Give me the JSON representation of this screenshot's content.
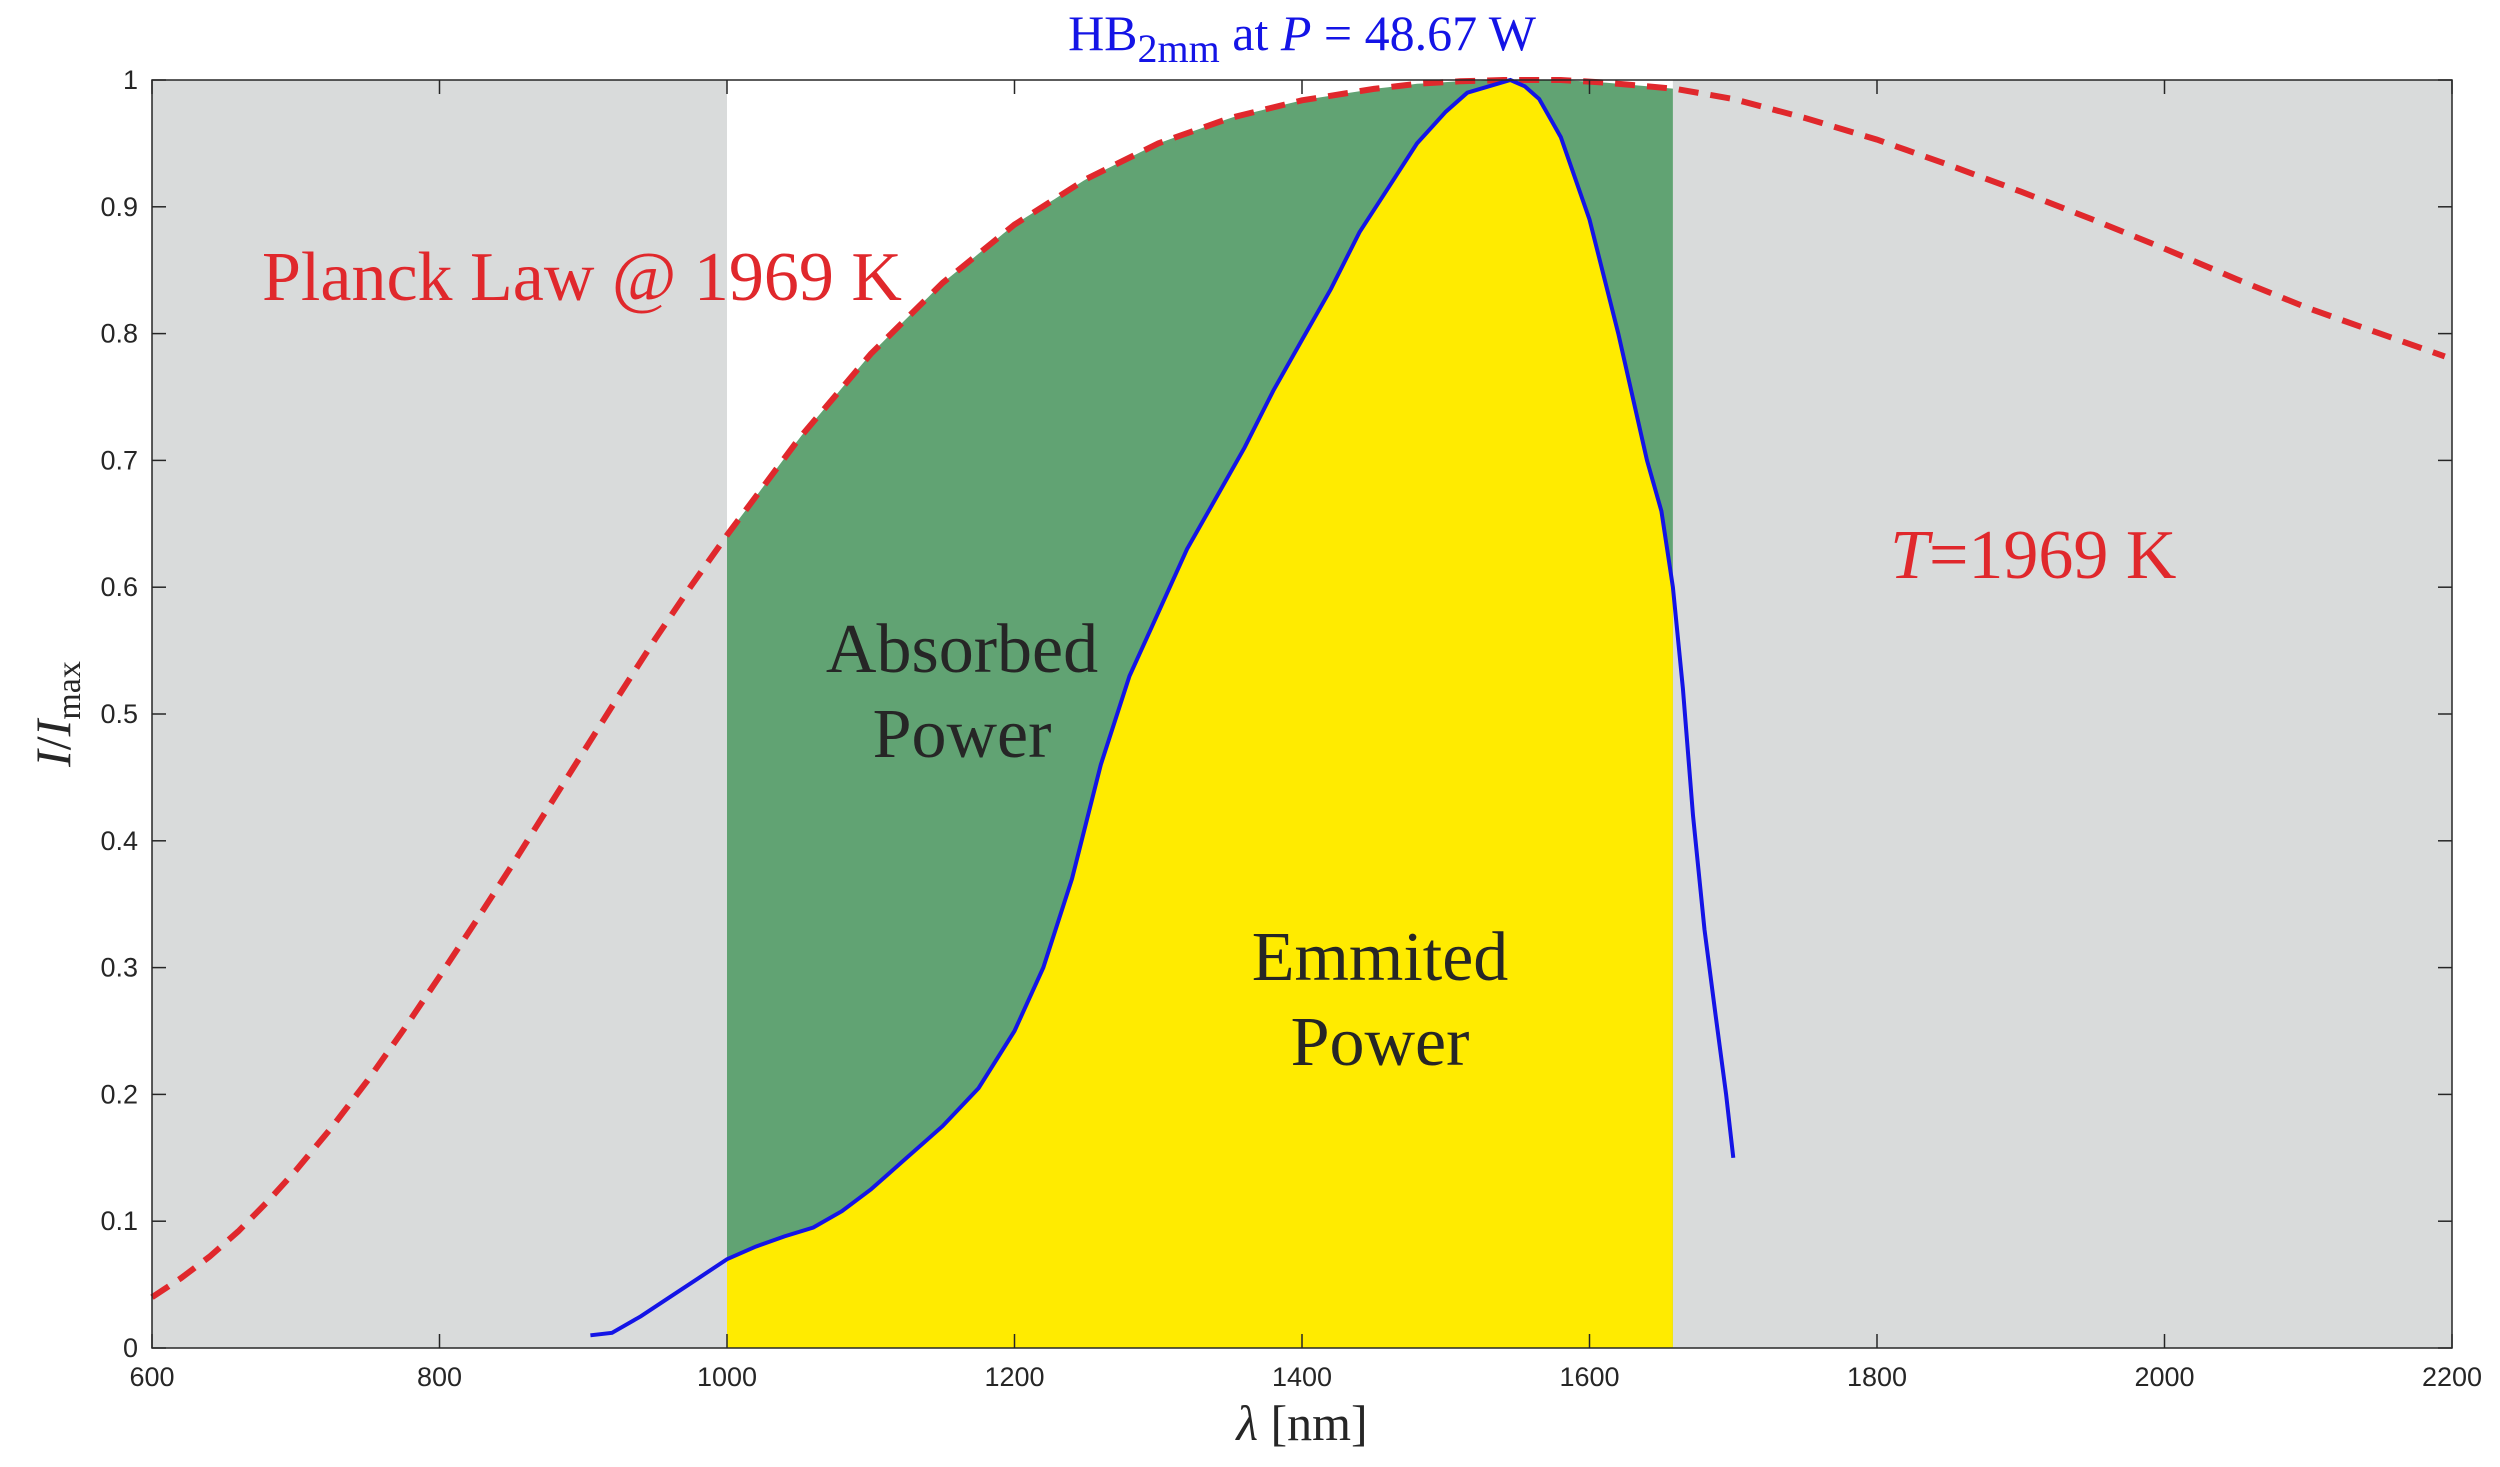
{
  "chart_data": {
    "type": "area",
    "title": {
      "prefix": "HB",
      "subscript": "2mm",
      "middle": " at ",
      "var": "P",
      "suffix": " = 48.67 W"
    },
    "xlabel": {
      "symbol": "λ",
      "unit": " [nm]"
    },
    "ylabel": {
      "var": "I",
      "slash": "/",
      "denom": "I",
      "denom_sub": "max"
    },
    "xlim": [
      600,
      2200
    ],
    "ylim": [
      0,
      1
    ],
    "xticks": [
      "600",
      "800",
      "1000",
      "1200",
      "1400",
      "1600",
      "1800",
      "2000",
      "2200"
    ],
    "yticks": [
      "0",
      "0.1",
      "0.2",
      "0.3",
      "0.4",
      "0.5",
      "0.6",
      "0.7",
      "0.8",
      "0.9",
      "1"
    ],
    "grid": false,
    "window": [
      1000,
      1658
    ],
    "annotations": {
      "planck": "Planck Law @ 1969 K",
      "temp_var": "T",
      "temp_rest": "=1969 K",
      "absorbed_1": "Absorbed",
      "absorbed_2": "Power",
      "emitted_1": "Emmited",
      "emitted_2": "Power"
    },
    "colors": {
      "planck": "#e0282c",
      "measured": "#1414e6",
      "absorbed": "#61a373",
      "emitted": "#ffeb00",
      "outside": "#d9dbdb"
    },
    "series": [
      {
        "style": "dashed",
        "x": [
          600,
          620,
          640,
          660,
          680,
          700,
          725,
          750,
          775,
          800,
          825,
          850,
          875,
          900,
          925,
          950,
          975,
          1000,
          1050,
          1100,
          1150,
          1200,
          1250,
          1300,
          1350,
          1400,
          1450,
          1480,
          1510,
          1540,
          1560,
          1580,
          1610,
          1640,
          1660,
          1700,
          1750,
          1800,
          1850,
          1900,
          1950,
          2000,
          2050,
          2100,
          2150,
          2195
        ],
        "y": [
          0.04,
          0.055,
          0.072,
          0.092,
          0.115,
          0.14,
          0.174,
          0.211,
          0.251,
          0.293,
          0.336,
          0.38,
          0.425,
          0.47,
          0.515,
          0.559,
          0.601,
          0.641,
          0.717,
          0.784,
          0.84,
          0.886,
          0.922,
          0.95,
          0.97,
          0.984,
          0.993,
          0.997,
          0.999,
          1.0,
          1.0,
          1.0,
          0.998,
          0.995,
          0.993,
          0.985,
          0.97,
          0.953,
          0.933,
          0.912,
          0.89,
          0.867,
          0.843,
          0.82,
          0.8,
          0.782
        ]
      },
      {
        "style": "solid",
        "x": [
          905,
          920,
          940,
          960,
          980,
          1000,
          1020,
          1040,
          1060,
          1080,
          1100,
          1125,
          1150,
          1175,
          1200,
          1220,
          1240,
          1260,
          1280,
          1300,
          1320,
          1340,
          1360,
          1380,
          1400,
          1420,
          1440,
          1460,
          1480,
          1500,
          1515,
          1530,
          1545,
          1555,
          1565,
          1580,
          1600,
          1620,
          1640,
          1650,
          1658,
          1665,
          1672,
          1680,
          1688,
          1695,
          1700
        ],
        "y": [
          0.01,
          0.012,
          0.025,
          0.04,
          0.055,
          0.07,
          0.08,
          0.088,
          0.095,
          0.108,
          0.125,
          0.15,
          0.175,
          0.205,
          0.25,
          0.3,
          0.37,
          0.46,
          0.53,
          0.58,
          0.63,
          0.67,
          0.71,
          0.755,
          0.795,
          0.835,
          0.88,
          0.915,
          0.95,
          0.975,
          0.99,
          0.995,
          1.0,
          0.995,
          0.985,
          0.955,
          0.89,
          0.8,
          0.7,
          0.66,
          0.6,
          0.52,
          0.42,
          0.33,
          0.26,
          0.2,
          0.15
        ]
      }
    ]
  }
}
